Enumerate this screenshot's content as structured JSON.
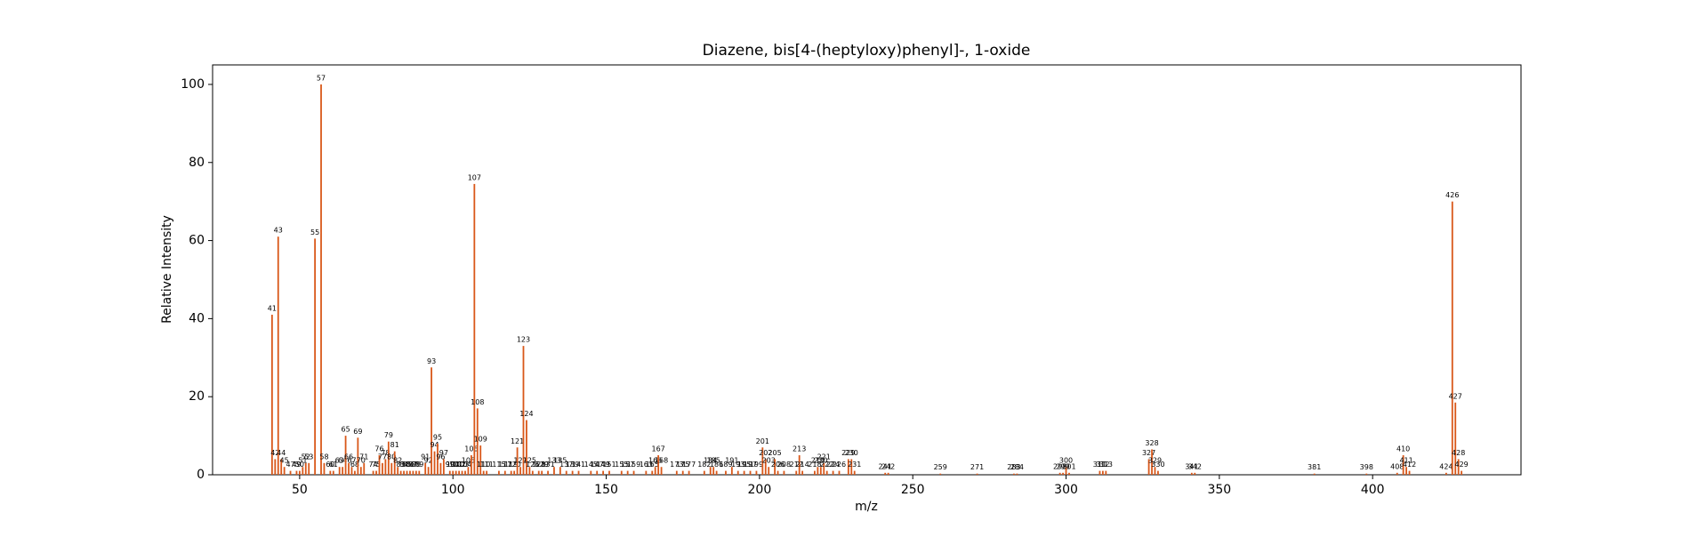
{
  "chart_data": {
    "type": "bar",
    "title": "Diazene, bis[4-(heptyloxy)phenyl]-, 1-oxide",
    "xlabel": "m/z",
    "ylabel": "Relative Intensity",
    "color": "#d9581a",
    "x": [
      41,
      42,
      43,
      44,
      45,
      47,
      49,
      50,
      51,
      52,
      53,
      55,
      57,
      58,
      60,
      61,
      63,
      64,
      65,
      66,
      67,
      68,
      69,
      70,
      71,
      74,
      75,
      76,
      77,
      78,
      79,
      80,
      81,
      82,
      83,
      84,
      85,
      86,
      87,
      88,
      89,
      91,
      92,
      93,
      94,
      95,
      96,
      97,
      99,
      100,
      101,
      102,
      103,
      104,
      105,
      106,
      107,
      108,
      109,
      110,
      111,
      115,
      117,
      119,
      120,
      121,
      122,
      123,
      124,
      125,
      126,
      128,
      129,
      131,
      133,
      135,
      137,
      139,
      141,
      145,
      147,
      149,
      151,
      155,
      157,
      159,
      163,
      165,
      166,
      167,
      168,
      173,
      175,
      177,
      182,
      184,
      185,
      186,
      189,
      191,
      193,
      195,
      197,
      199,
      201,
      202,
      203,
      205,
      206,
      208,
      212,
      213,
      214,
      218,
      219,
      220,
      221,
      222,
      224,
      226,
      229,
      230,
      231,
      241,
      242,
      259,
      271,
      283,
      284,
      298,
      299,
      300,
      301,
      311,
      312,
      313,
      327,
      328,
      329,
      330,
      341,
      342,
      381,
      398,
      408,
      410,
      411,
      412,
      424,
      426,
      427,
      428,
      429
    ],
    "values": [
      41,
      4,
      61,
      4,
      2,
      1,
      1,
      1,
      2,
      3,
      3,
      60.5,
      100,
      3,
      1,
      1,
      2,
      2,
      10,
      3,
      2,
      1,
      9.5,
      2,
      3,
      1,
      1,
      5,
      3,
      4,
      8.5,
      3,
      6,
      2,
      1,
      1,
      1,
      1,
      1,
      1,
      1,
      3,
      2,
      27.5,
      6,
      8,
      3,
      4,
      1,
      1,
      1,
      1,
      1,
      1,
      2,
      5,
      74.5,
      17,
      7.5,
      1,
      1,
      1,
      1,
      1,
      1,
      7,
      2,
      33,
      14,
      2,
      1,
      1,
      1,
      1,
      2,
      2,
      1,
      1,
      1,
      1,
      1,
      1,
      1,
      1,
      1,
      1,
      1,
      1,
      2,
      5,
      2,
      1,
      1,
      1,
      1,
      2,
      2,
      1,
      1,
      2,
      1,
      1,
      1,
      1,
      7,
      4,
      2,
      4,
      1,
      1,
      1,
      5,
      1,
      1,
      2,
      2,
      3,
      1,
      1,
      1,
      4,
      4,
      1,
      0.5,
      0.5,
      0.3,
      0.3,
      0.3,
      0.3,
      0.5,
      0.5,
      2,
      0.5,
      1,
      1,
      1,
      4,
      6.5,
      2,
      1,
      0.5,
      0.5,
      0.3,
      0.3,
      0.5,
      5,
      2,
      1,
      0.5,
      70,
      18.5,
      4,
      1
    ],
    "xlim": [
      21.6,
      448.4
    ],
    "ylim": [
      0,
      105
    ],
    "xticks": [
      50,
      100,
      150,
      200,
      250,
      300,
      350,
      400
    ],
    "yticks": [
      0,
      20,
      40,
      60,
      80,
      100
    ]
  }
}
